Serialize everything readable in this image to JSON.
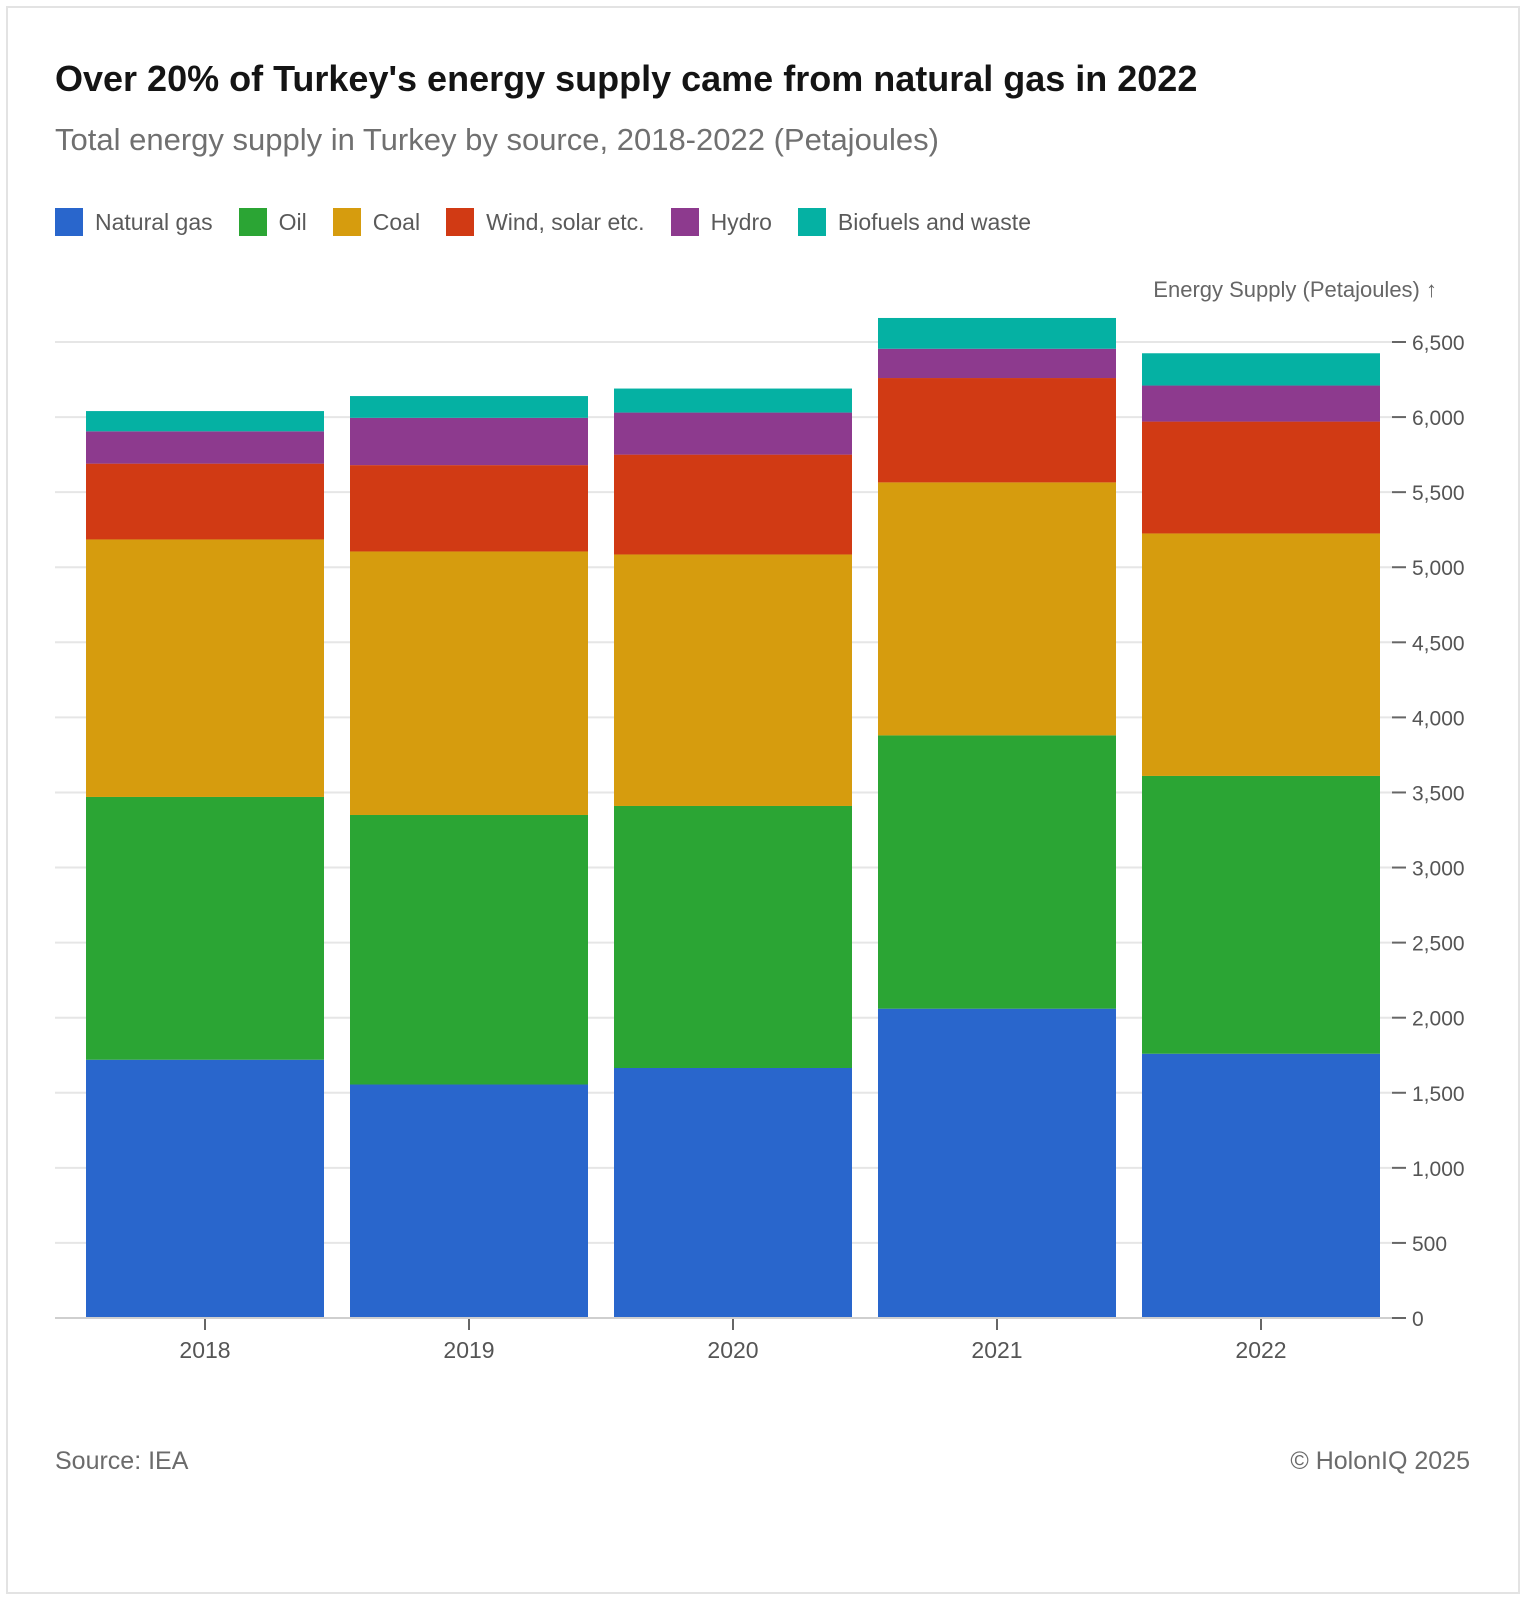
{
  "chart_data": {
    "type": "bar",
    "stacked": true,
    "title": "Over 20% of Turkey's energy supply came from natural gas in 2022",
    "subtitle": "Total energy supply in Turkey by source, 2018-2022 (Petajoules)",
    "ylabel": "Energy Supply (Petajoules) ↑",
    "xlabel": "",
    "categories": [
      "2018",
      "2019",
      "2020",
      "2021",
      "2022"
    ],
    "ylim": [
      0,
      6500
    ],
    "yticks": [
      0,
      500,
      1000,
      1500,
      2000,
      2500,
      3000,
      3500,
      4000,
      4500,
      5000,
      5500,
      6000,
      6500
    ],
    "ytick_labels": [
      "0",
      "500",
      "1,000",
      "1,500",
      "2,000",
      "2,500",
      "3,000",
      "3,500",
      "4,000",
      "4,500",
      "5,000",
      "5,500",
      "6,000",
      "6,500"
    ],
    "grid": true,
    "legend_position": "top-left",
    "series": [
      {
        "name": "Natural gas",
        "color": "#2966cc",
        "values": [
          1720,
          1555,
          1665,
          2060,
          1760
        ]
      },
      {
        "name": "Oil",
        "color": "#2ba534",
        "values": [
          1750,
          1795,
          1745,
          1820,
          1850
        ]
      },
      {
        "name": "Coal",
        "color": "#d69c0e",
        "values": [
          1715,
          1755,
          1675,
          1685,
          1615
        ]
      },
      {
        "name": "Wind, solar etc.",
        "color": "#d13a14",
        "values": [
          505,
          575,
          665,
          695,
          745
        ]
      },
      {
        "name": "Hydro",
        "color": "#8d3a8e",
        "values": [
          215,
          315,
          280,
          195,
          240
        ]
      },
      {
        "name": "Biofuels and waste",
        "color": "#05b1a3",
        "values": [
          135,
          145,
          160,
          205,
          215
        ]
      }
    ]
  },
  "footer": {
    "source": "Source: IEA",
    "copyright": "© HolonIQ 2025"
  }
}
